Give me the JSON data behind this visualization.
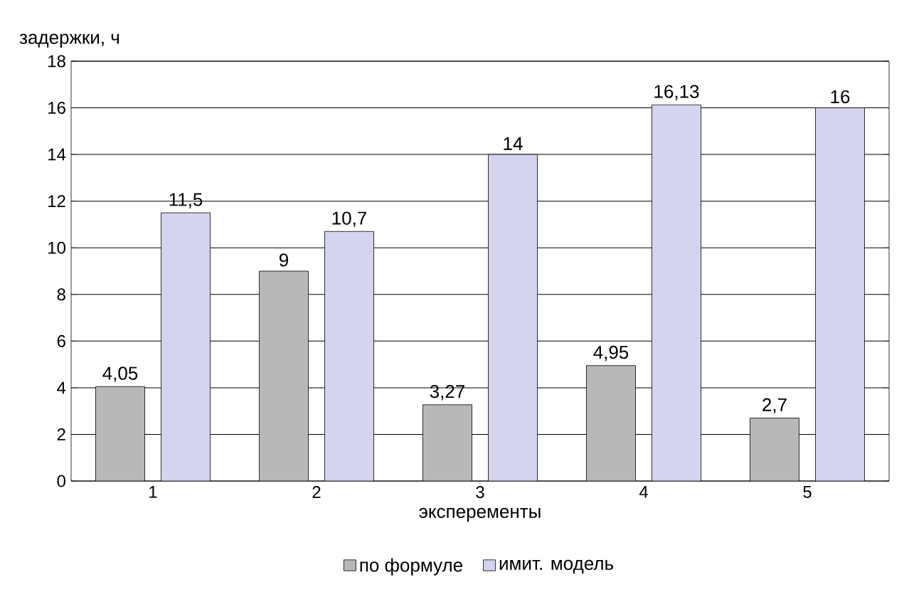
{
  "chart_data": {
    "type": "bar",
    "xlabel": "эксперементы",
    "ylabel": "задержки, ч",
    "categories": [
      "1",
      "2",
      "3",
      "4",
      "5"
    ],
    "series": [
      {
        "name": "по формуле",
        "color": "#b8b8b8",
        "values": [
          4.05,
          9,
          3.27,
          4.95,
          2.7
        ],
        "value_labels": [
          "4,05",
          "9",
          "3,27",
          "4,95",
          "2,7"
        ]
      },
      {
        "name": "имит. модель",
        "color": "#d4d4ee",
        "values": [
          11.5,
          10.7,
          14,
          16.13,
          16
        ],
        "value_labels": [
          "11,5",
          "10,7",
          "14",
          "16,13",
          "16"
        ]
      }
    ],
    "ylim": [
      0,
      18
    ],
    "yticks": [
      0,
      2,
      4,
      6,
      8,
      10,
      12,
      14,
      16,
      18
    ],
    "grid": "y",
    "legend": "bottom"
  }
}
